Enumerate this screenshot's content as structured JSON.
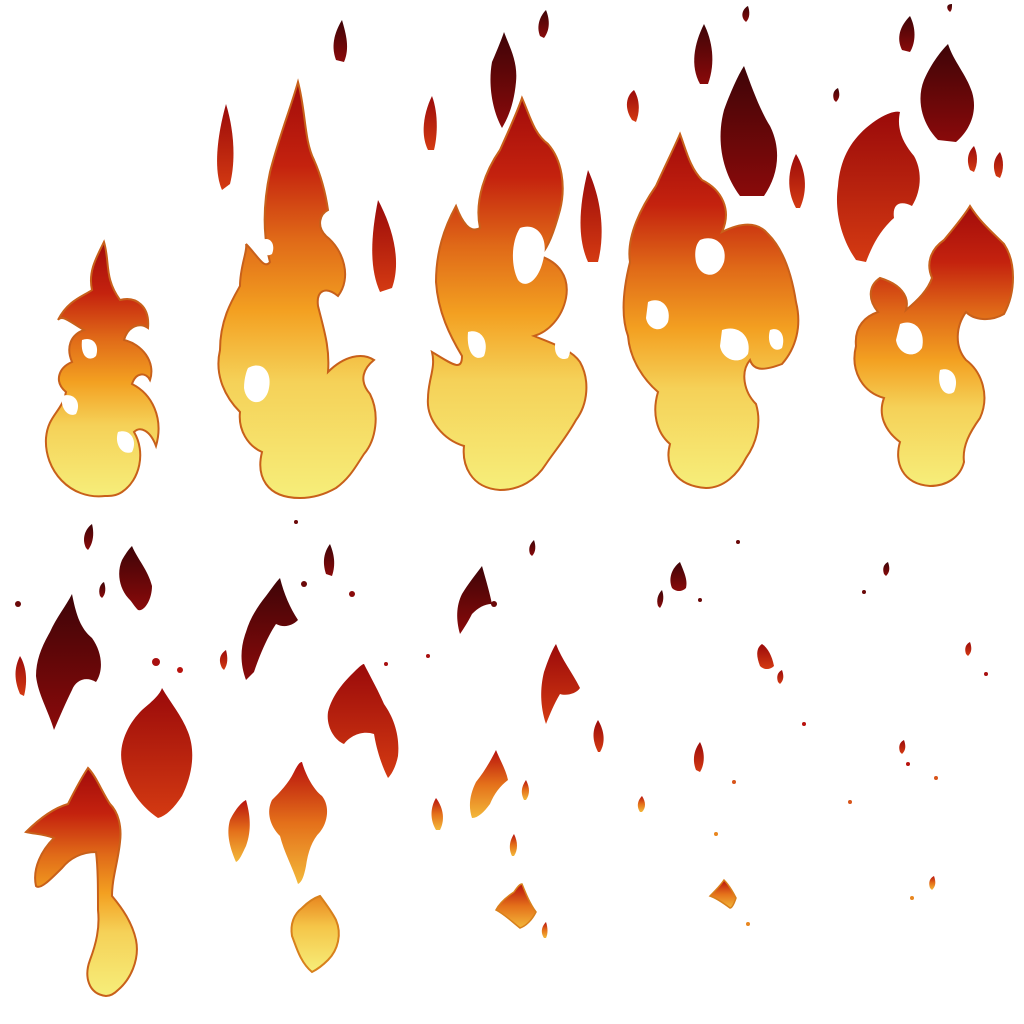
{
  "sprite_sheet": {
    "kind": "flame animation sprite sheet",
    "grid": {
      "columns": 5,
      "rows": 2
    },
    "frame_count": 10,
    "frames": [
      {
        "index": 1,
        "phase": "ignite"
      },
      {
        "index": 2,
        "phase": "grow"
      },
      {
        "index": 3,
        "phase": "full"
      },
      {
        "index": 4,
        "phase": "full"
      },
      {
        "index": 5,
        "phase": "break-up"
      },
      {
        "index": 6,
        "phase": "scatter"
      },
      {
        "index": 7,
        "phase": "scatter"
      },
      {
        "index": 8,
        "phase": "fade"
      },
      {
        "index": 9,
        "phase": "embers"
      },
      {
        "index": 10,
        "phase": "embers"
      }
    ],
    "colors": {
      "background": "#ffffff",
      "core": "#f6ee7a",
      "mid": "#f3a021",
      "outer": "#d9541a",
      "tip": "#b8120d",
      "smoke": "#3e0407"
    }
  }
}
